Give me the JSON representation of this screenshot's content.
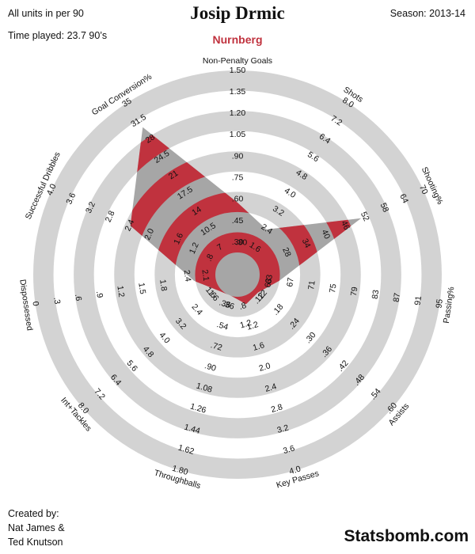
{
  "header": {
    "units_note": "All units in per 90",
    "time_played": "Time played: 23.7 90’s",
    "player": "Josip Drmic",
    "team": "Nurnberg",
    "season": "Season: 2013-14"
  },
  "footer": {
    "created_by": "Created by:",
    "author1": "Nat James &",
    "author2": "Ted Knutson",
    "brand": "Statsbomb.com"
  },
  "colors": {
    "ring": "#d3d3d3",
    "shape_grey": "#a6a6a6",
    "shape_red": "#c0323e",
    "team": "#c0323e"
  },
  "chart_data": {
    "type": "radar",
    "levels": 5,
    "axes": [
      {
        "name": "Non-Penalty Goals",
        "ticks": [
          ".30",
          ".45",
          ".60",
          ".75",
          ".90",
          "1.05",
          "1.20",
          "1.35",
          "1.50"
        ],
        "value": 0.52,
        "min": 0.15,
        "max": 1.5
      },
      {
        "name": "Shots",
        "ticks": [
          "1.6",
          "2.4",
          "3.2",
          "4.0",
          "4.8",
          "5.6",
          "6.4",
          "7.2",
          "8.0"
        ],
        "value": 2.05,
        "min": 0.8,
        "max": 8.0
      },
      {
        "name": "Shooting%",
        "ticks": [
          "28",
          "34",
          "40",
          "46",
          "52",
          "58",
          "64",
          "70"
        ],
        "value": 52,
        "min": 22,
        "max": 70
      },
      {
        "name": "Passing%",
        "ticks": [
          "63",
          "67",
          "71",
          "75",
          "79",
          "83",
          "87",
          "91",
          "95"
        ],
        "value": 63,
        "min": 59,
        "max": 95
      },
      {
        "name": "Assists",
        "ticks": [
          ".12",
          ".18",
          ".24",
          ".30",
          ".36",
          ".42",
          ".48",
          ".54",
          ".60"
        ],
        "value": 0.075,
        "min": 0.06,
        "max": 0.6
      },
      {
        "name": "Key Passes",
        "ticks": [
          "1.2",
          "1.6",
          "2.0",
          "2.4",
          "2.8",
          "3.2",
          "3.6",
          "4.0"
        ],
        "value": 0.95,
        "min": 0.8,
        "max": 4.0
      },
      {
        "name": "Throughballs",
        "ticks": [
          ".36",
          ".54",
          ".72",
          ".90",
          "1.08",
          "1.26",
          "1.44",
          "1.62",
          "1.80"
        ],
        "value": 0.05,
        "min": 0.18,
        "max": 1.8
      },
      {
        "name": "Int+Tackles",
        "ticks": [
          "1.6",
          "2.4",
          "3.2",
          "4.0",
          "4.8",
          "5.6",
          "6.4",
          "7.2",
          "8.0"
        ],
        "value": 0.9,
        "min": 0.8,
        "max": 8.0
      },
      {
        "name": "Dispossessed",
        "ticks": [
          "1.8",
          "1.5",
          "1.2",
          ".9",
          ".6",
          ".3",
          "0"
        ],
        "value": 1.85,
        "min": 2.1,
        "max": 0.0
      },
      {
        "name": "Successful Dribbles",
        "ticks": [
          "2.0",
          "2.4",
          "2.8",
          "3.2",
          "3.6",
          "4.0"
        ],
        "value": 2.1,
        "min": 0.0,
        "max": 4.0
      },
      {
        "name": "Goal Conversion%",
        "ticks": [
          "7",
          "10.5",
          "14",
          "17.5",
          "21",
          "24.5",
          "28",
          "31.5",
          "35"
        ],
        "value": 30,
        "min": 3.5,
        "max": 35
      }
    ],
    "inner_axis_labels": [
      {
        "axis": "Non-Penalty Goals",
        "ticks": [
          ".30"
        ]
      },
      {
        "axis": "Successful Dribbles",
        "ticks": [
          ".8",
          "1.2",
          "1.6"
        ]
      },
      {
        "axis": "Dispossessed",
        "ticks": [
          "2.1",
          "2.4"
        ]
      },
      {
        "axis": "Int+Tackles",
        "ticks": [
          "1.6"
        ]
      },
      {
        "axis": "Throughballs",
        "ticks": [
          ".36"
        ]
      },
      {
        "axis": "Key Passes",
        "ticks": [
          ".8",
          "1.2"
        ]
      },
      {
        "axis": "Assists",
        "ticks": [
          ".12"
        ]
      },
      {
        "axis": "Passing%",
        "ticks": [
          "63"
        ]
      }
    ]
  }
}
